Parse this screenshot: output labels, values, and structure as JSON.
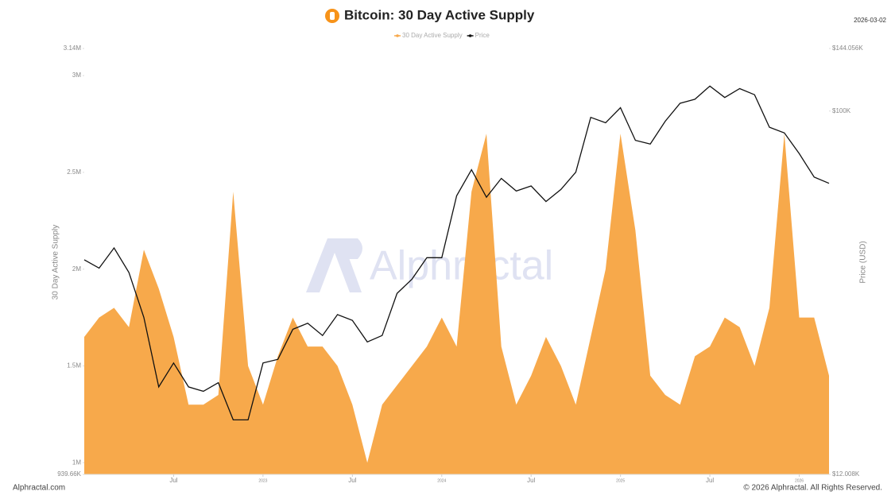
{
  "chart_data": {
    "type": "area-line",
    "title": "Bitcoin: 30 Day Active Supply",
    "date": "2026-03-02",
    "watermark": "Alphractal",
    "source": "Alphractal.com",
    "copyright": "© 2026 Alphractal. All Rights Reserved.",
    "y_label": "30 Day Active Supply",
    "y2_label": "Price (USD)",
    "y2_scale": "log",
    "x": [
      "2022-01",
      "2022-02",
      "2022-03",
      "2022-04",
      "2022-05",
      "2022-06",
      "2022-07",
      "2022-08",
      "2022-09",
      "2022-10",
      "2022-11",
      "2022-12",
      "2023-01",
      "2023-02",
      "2023-03",
      "2023-04",
      "2023-05",
      "2023-06",
      "2023-07",
      "2023-08",
      "2023-09",
      "2023-10",
      "2023-11",
      "2023-12",
      "2024-01",
      "2024-02",
      "2024-03",
      "2024-04",
      "2024-05",
      "2024-06",
      "2024-07",
      "2024-08",
      "2024-09",
      "2024-10",
      "2024-11",
      "2024-12",
      "2025-01",
      "2025-02",
      "2025-03",
      "2025-04",
      "2025-05",
      "2025-06",
      "2025-07",
      "2025-08",
      "2025-09",
      "2025-10",
      "2025-11",
      "2025-12",
      "2026-01",
      "2026-02",
      "2026-03"
    ],
    "xticks": [
      {
        "value": "2022-07",
        "label": "Jul"
      },
      {
        "value": "2023-01",
        "label": "2023"
      },
      {
        "value": "2023-07",
        "label": "Jul"
      },
      {
        "value": "2024-01",
        "label": "2024"
      },
      {
        "value": "2024-07",
        "label": "Jul"
      },
      {
        "value": "2025-01",
        "label": "2025"
      },
      {
        "value": "2025-07",
        "label": "Jul"
      },
      {
        "value": "2026-01",
        "label": "2026"
      }
    ],
    "series": [
      {
        "name": "30 Day Active Supply",
        "color": "#f7a94b",
        "values": [
          1650000,
          1750000,
          1800000,
          1700000,
          2100000,
          1900000,
          1650000,
          1300000,
          1300000,
          1350000,
          2400000,
          1500000,
          1300000,
          1550000,
          1750000,
          1600000,
          1600000,
          1500000,
          1300000,
          1000000,
          1300000,
          1400000,
          1500000,
          1600000,
          1750000,
          1600000,
          2400000,
          2700000,
          1600000,
          1300000,
          1450000,
          1650000,
          1500000,
          1300000,
          1650000,
          2000000,
          2700000,
          2200000,
          1450000,
          1350000,
          1300000,
          1550000,
          1600000,
          1750000,
          1700000,
          1500000,
          1800000,
          2700000,
          1750000,
          1750000,
          1450000
        ]
      },
      {
        "name": "Price",
        "color": "#111111",
        "axis": "y2",
        "values": [
          42000,
          40000,
          45000,
          39000,
          30000,
          20000,
          23000,
          20000,
          19500,
          20500,
          16500,
          16500,
          23000,
          23500,
          28000,
          29000,
          27000,
          30500,
          29500,
          26000,
          27000,
          34500,
          37500,
          42500,
          42500,
          61000,
          71000,
          60500,
          67500,
          62700,
          64600,
          59000,
          63300,
          70000,
          96400,
          93400,
          102000,
          84300,
          82500,
          94200,
          104600,
          107100,
          115700,
          108200,
          114000,
          110000,
          91000,
          88000,
          78000,
          68000,
          65600
        ]
      }
    ],
    "ylim": [
      939660,
      3140000
    ],
    "yticks": [
      {
        "value": 939660,
        "label": "939.66K"
      },
      {
        "value": 1000000,
        "label": "1M"
      },
      {
        "value": 1500000,
        "label": "1.5M"
      },
      {
        "value": 2000000,
        "label": "2M"
      },
      {
        "value": 2500000,
        "label": "2.5M"
      },
      {
        "value": 3000000,
        "label": "3M"
      },
      {
        "value": 3140000,
        "label": "3.14M"
      }
    ],
    "y2lim": [
      12008,
      144056
    ],
    "y2ticks": [
      {
        "value": 12008,
        "label": "$12.008K"
      },
      {
        "value": 100000,
        "label": "$100K"
      },
      {
        "value": 144056,
        "label": "$144.056K"
      }
    ]
  }
}
